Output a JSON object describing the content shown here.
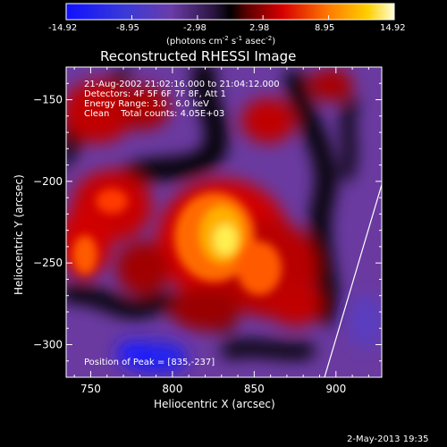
{
  "colorbar": {
    "ticks": [
      "-14.92",
      "-8.95",
      "-2.98",
      "2.98",
      "8.95",
      "14.92"
    ],
    "tick_values": [
      -14.92,
      -8.95,
      -2.98,
      2.98,
      8.95,
      14.92
    ],
    "units_label": "(photons cm",
    "units_exp1": "-2",
    "units_mid": " s",
    "units_exp2": "-1",
    "units_end": " asec",
    "units_exp3": "-2",
    "units_close": ")"
  },
  "chart_data": {
    "type": "heatmap",
    "title": "Reconstructed RHESSI Image",
    "xlabel": "Heliocentric X (arcsec)",
    "ylabel": "Heliocentric Y (arcsec)",
    "xlim": [
      735,
      928
    ],
    "ylim": [
      -320,
      -130
    ],
    "x_ticks": [
      750,
      800,
      850,
      900
    ],
    "x_tick_labels": [
      "750",
      "800",
      "850",
      "900"
    ],
    "y_ticks": [
      -150,
      -200,
      -250,
      -300
    ],
    "y_tick_labels": [
      "−150",
      "−200",
      "−250",
      "−300"
    ],
    "color_range": [
      -14.92,
      14.92
    ],
    "colors": {
      "low": "#0000ff",
      "mid_low": "#7c3f9c",
      "zero": "#000000",
      "mid_high": "#ff0000",
      "high": "#ffff66"
    },
    "peak": [
      835,
      -237
    ],
    "limb_line": [
      [
        893,
        -320
      ],
      [
        928,
        -202
      ]
    ],
    "annotations": [
      "21-Aug-2002 21:02:16.000 to 21:04:12.000",
      "Detectors: 4F 5F 6F 7F 8F, Att 1",
      "Energy Range: 3.0 - 6.0 keV",
      "Clean    Total counts: 4.05E+03"
    ],
    "peak_label": "Position of Peak = [835,-237]"
  },
  "footer": {
    "date": "2-May-2013 19:35"
  }
}
